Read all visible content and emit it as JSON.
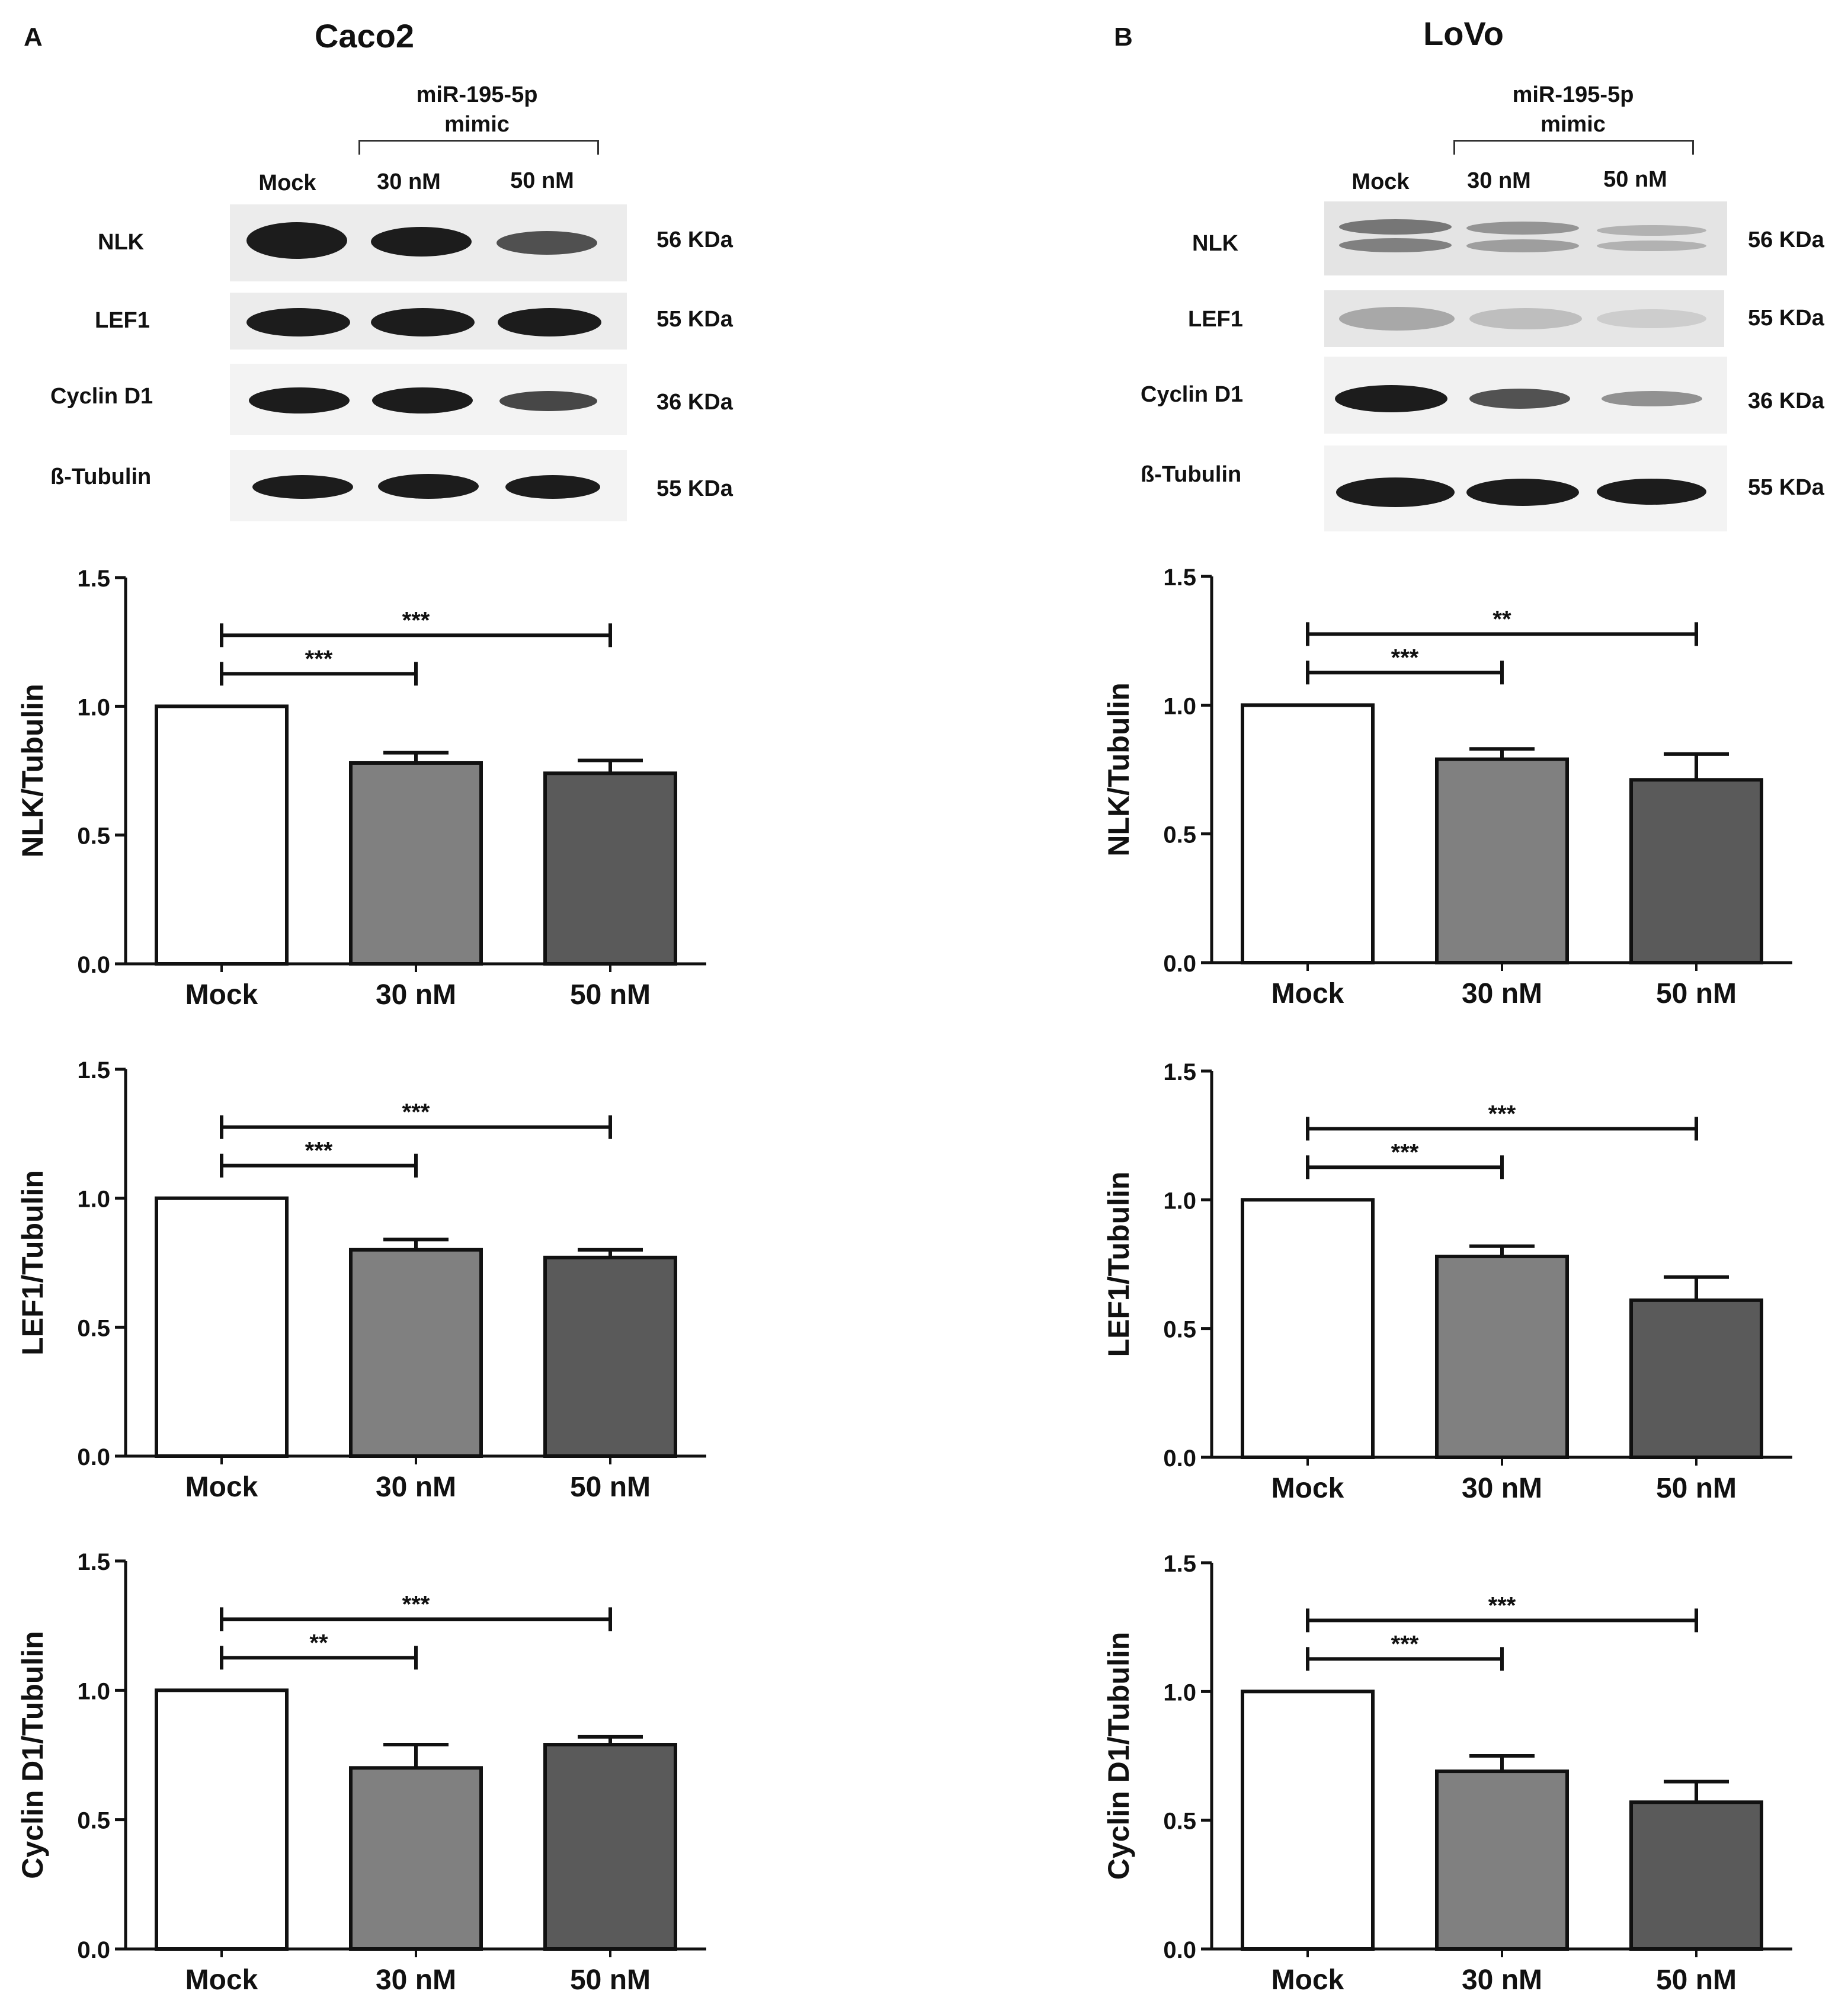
{
  "panels": [
    {
      "letter": "A",
      "title": "Caco2",
      "treatment": [
        "miR-195-5p",
        "mimic"
      ],
      "lanes": [
        "Mock",
        "30 nM",
        "50 nM"
      ],
      "blots": [
        {
          "protein": "NLK",
          "size": "56 KDa"
        },
        {
          "protein": "LEF1",
          "size": "55 KDa"
        },
        {
          "protein": "Cyclin D1",
          "size": "36 KDa"
        },
        {
          "protein": "ß-Tubulin",
          "size": "55 KDa"
        }
      ]
    },
    {
      "letter": "B",
      "title": "LoVo",
      "treatment": [
        "miR-195-5p",
        "mimic"
      ],
      "lanes": [
        "Mock",
        "30 nM",
        "50 nM"
      ],
      "blots": [
        {
          "protein": "NLK",
          "size": "56 KDa"
        },
        {
          "protein": "LEF1",
          "size": "55 KDa"
        },
        {
          "protein": "Cyclin D1",
          "size": "36 KDa"
        },
        {
          "protein": "ß-Tubulin",
          "size": "55 KDa"
        }
      ]
    }
  ],
  "colors": {
    "mock": "#ffffff",
    "nm30": "#808080",
    "nm50": "#5a5a5a",
    "axis": "#111111"
  },
  "chart_data": [
    {
      "type": "bar",
      "panel": "A",
      "categories": [
        "Mock",
        "30 nM",
        "50 nM"
      ],
      "values": [
        1.0,
        0.78,
        0.74
      ],
      "errors": [
        0,
        0.04,
        0.05
      ],
      "ylabel": "NLK/Tubulin",
      "ylim": [
        0,
        1.5
      ],
      "yticks": [
        "0.0",
        "0.5",
        "1.0",
        "1.5"
      ],
      "significance": [
        {
          "from": 0,
          "to": 1,
          "label": "***"
        },
        {
          "from": 0,
          "to": 2,
          "label": "***"
        }
      ]
    },
    {
      "type": "bar",
      "panel": "A",
      "categories": [
        "Mock",
        "30 nM",
        "50 nM"
      ],
      "values": [
        1.0,
        0.8,
        0.77
      ],
      "errors": [
        0,
        0.04,
        0.03
      ],
      "ylabel": "LEF1/Tubulin",
      "ylim": [
        0,
        1.5
      ],
      "yticks": [
        "0.0",
        "0.5",
        "1.0",
        "1.5"
      ],
      "significance": [
        {
          "from": 0,
          "to": 1,
          "label": "***"
        },
        {
          "from": 0,
          "to": 2,
          "label": "***"
        }
      ]
    },
    {
      "type": "bar",
      "panel": "A",
      "categories": [
        "Mock",
        "30 nM",
        "50 nM"
      ],
      "values": [
        1.0,
        0.7,
        0.79
      ],
      "errors": [
        0,
        0.09,
        0.03
      ],
      "ylabel": "Cyclin D1/Tubulin",
      "ylim": [
        0,
        1.5
      ],
      "yticks": [
        "0.0",
        "0.5",
        "1.0",
        "1.5"
      ],
      "significance": [
        {
          "from": 0,
          "to": 1,
          "label": "**"
        },
        {
          "from": 0,
          "to": 2,
          "label": "***"
        }
      ]
    },
    {
      "type": "bar",
      "panel": "B",
      "categories": [
        "Mock",
        "30 nM",
        "50 nM"
      ],
      "values": [
        1.0,
        0.79,
        0.71
      ],
      "errors": [
        0,
        0.04,
        0.1
      ],
      "ylabel": "NLK/Tubulin",
      "ylim": [
        0,
        1.5
      ],
      "yticks": [
        "0.0",
        "0.5",
        "1.0",
        "1.5"
      ],
      "significance": [
        {
          "from": 0,
          "to": 1,
          "label": "***"
        },
        {
          "from": 0,
          "to": 2,
          "label": "**"
        }
      ]
    },
    {
      "type": "bar",
      "panel": "B",
      "categories": [
        "Mock",
        "30 nM",
        "50 nM"
      ],
      "values": [
        1.0,
        0.78,
        0.61
      ],
      "errors": [
        0,
        0.04,
        0.09
      ],
      "ylabel": "LEF1/Tubulin",
      "ylim": [
        0,
        1.5
      ],
      "yticks": [
        "0.0",
        "0.5",
        "1.0",
        "1.5"
      ],
      "significance": [
        {
          "from": 0,
          "to": 1,
          "label": "***"
        },
        {
          "from": 0,
          "to": 2,
          "label": "***"
        }
      ]
    },
    {
      "type": "bar",
      "panel": "B",
      "categories": [
        "Mock",
        "30 nM",
        "50 nM"
      ],
      "values": [
        1.0,
        0.69,
        0.57
      ],
      "errors": [
        0,
        0.06,
        0.08
      ],
      "ylabel": "Cyclin D1/Tubulin",
      "ylim": [
        0,
        1.5
      ],
      "yticks": [
        "0.0",
        "0.5",
        "1.0",
        "1.5"
      ],
      "significance": [
        {
          "from": 0,
          "to": 1,
          "label": "***"
        },
        {
          "from": 0,
          "to": 2,
          "label": "***"
        }
      ]
    }
  ]
}
